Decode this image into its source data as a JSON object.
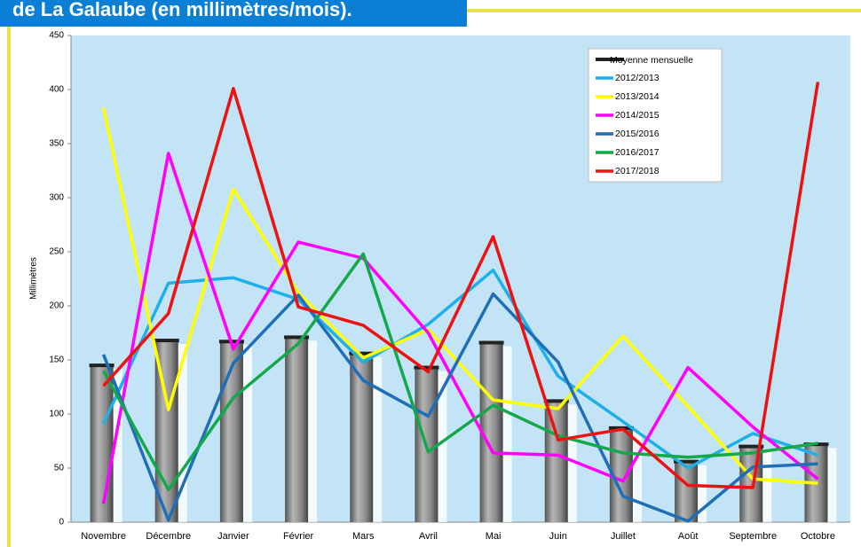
{
  "chart_data": {
    "type": "line",
    "title": "de La Galaube (en millimètres/mois).",
    "y_label": "Millimètres",
    "categories": [
      "Novembre",
      "Décembre",
      "Janvier",
      "Février",
      "Mars",
      "Avril",
      "Mai",
      "Juin",
      "Juillet",
      "Août",
      "Septembre",
      "Octobre"
    ],
    "bars": {
      "name": "Moyenne mensuelle",
      "color": "#8c8c8c",
      "values": [
        145,
        168,
        167,
        171,
        156,
        143,
        166,
        112,
        87,
        56,
        70,
        72
      ]
    },
    "series": [
      {
        "name": "2012/2013",
        "color": "#1fb0e8",
        "values": [
          91,
          221,
          226,
          206,
          148,
          183,
          233,
          135,
          93,
          50,
          82,
          62
        ]
      },
      {
        "name": "2013/2014",
        "color": "#ffff00",
        "values": [
          383,
          104,
          308,
          212,
          152,
          178,
          113,
          105,
          172,
          107,
          40,
          36
        ]
      },
      {
        "name": "2014/2015",
        "color": "#ff00ff",
        "values": [
          17,
          341,
          160,
          259,
          244,
          175,
          64,
          62,
          38,
          143,
          88,
          40
        ]
      },
      {
        "name": "2015/2016",
        "color": "#1f6fb8",
        "values": [
          155,
          2,
          147,
          210,
          131,
          98,
          211,
          148,
          24,
          1,
          51,
          54
        ]
      },
      {
        "name": "2016/2017",
        "color": "#14a84a",
        "values": [
          140,
          30,
          115,
          165,
          248,
          65,
          108,
          80,
          64,
          60,
          64,
          73
        ]
      },
      {
        "name": "2017/2018",
        "color": "#ee1111",
        "values": [
          126,
          193,
          401,
          199,
          182,
          139,
          264,
          76,
          86,
          34,
          32,
          407
        ]
      }
    ],
    "ylim": [
      0,
      450
    ],
    "yticks": [
      0,
      50,
      100,
      150,
      200,
      250,
      300,
      350,
      400,
      450
    ],
    "legend": "top-right"
  }
}
